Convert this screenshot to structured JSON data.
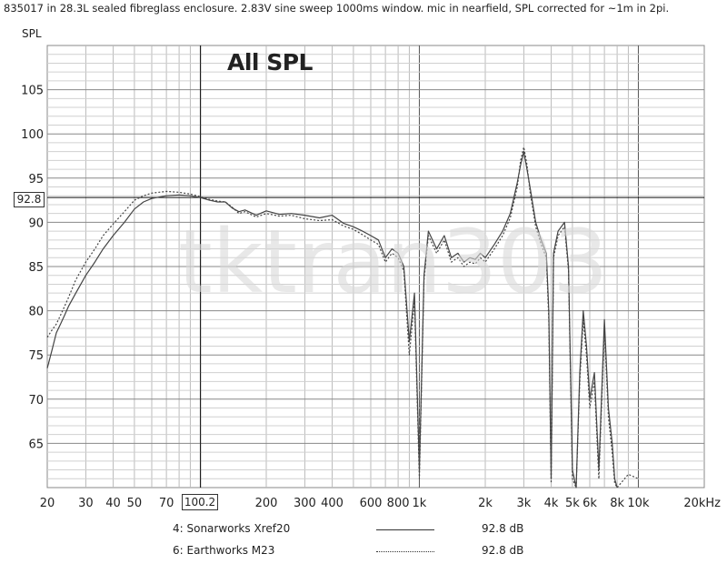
{
  "caption": "835017 in 28.3L sealed fibreglass enclosure. 2.83V sine sweep 1000ms window. mic in nearfield, SPL corrected for ~1m in 2pi.",
  "watermark": "tktran303",
  "chart_data": {
    "type": "line",
    "title": "All SPL",
    "ylabel": "SPL",
    "xlabel": "",
    "xscale": "log",
    "xlim": [
      20,
      20000
    ],
    "ylim": [
      60,
      110
    ],
    "grid": true,
    "x_ticks": [
      {
        "value": 20,
        "label": "20"
      },
      {
        "value": 30,
        "label": "30"
      },
      {
        "value": 40,
        "label": "40"
      },
      {
        "value": 50,
        "label": "50"
      },
      {
        "value": 70,
        "label": "70"
      },
      {
        "value": 200,
        "label": "200"
      },
      {
        "value": 300,
        "label": "300"
      },
      {
        "value": 400,
        "label": "400"
      },
      {
        "value": 600,
        "label": "600"
      },
      {
        "value": 800,
        "label": "800"
      },
      {
        "value": 1000,
        "label": "1k"
      },
      {
        "value": 2000,
        "label": "2k"
      },
      {
        "value": 3000,
        "label": "3k"
      },
      {
        "value": 4000,
        "label": "4k"
      },
      {
        "value": 5000,
        "label": "5k"
      },
      {
        "value": 6000,
        "label": "6k"
      },
      {
        "value": 8000,
        "label": "8k"
      },
      {
        "value": 10000,
        "label": "10k"
      },
      {
        "value": 20000,
        "label": "20kHz"
      }
    ],
    "y_ticks": [
      65,
      70,
      75,
      80,
      85,
      90,
      95,
      100,
      105
    ],
    "cursor": {
      "x": 100.2,
      "x_label": "100.2",
      "y": 92.8,
      "y_label": "92.8"
    },
    "series": [
      {
        "name": "4: Sonarworks Xref20",
        "value_label": "92.8 dB",
        "style": "solid",
        "color": "#444444",
        "x": [
          20,
          21,
          22,
          23,
          24,
          25,
          27,
          30,
          33,
          36,
          40,
          45,
          50,
          55,
          60,
          70,
          80,
          90,
          100,
          110,
          120,
          130,
          140,
          150,
          160,
          180,
          200,
          230,
          260,
          300,
          350,
          400,
          450,
          500,
          550,
          600,
          650,
          700,
          750,
          800,
          850,
          900,
          950,
          1000,
          1050,
          1100,
          1200,
          1300,
          1400,
          1500,
          1600,
          1700,
          1800,
          1900,
          2000,
          2200,
          2400,
          2600,
          2800,
          2900,
          3000,
          3100,
          3200,
          3400,
          3600,
          3800,
          3900,
          4000,
          4100,
          4300,
          4600,
          4800,
          5000,
          5200,
          5400,
          5600,
          5800,
          6000,
          6300,
          6600,
          7000,
          7300,
          7600,
          7800,
          8000
        ],
        "y": [
          73.5,
          75.5,
          77.5,
          78.5,
          79.5,
          80.5,
          82.0,
          84.0,
          85.5,
          87.0,
          88.5,
          90.0,
          91.5,
          92.3,
          92.7,
          93.0,
          93.1,
          93.0,
          92.8,
          92.5,
          92.3,
          92.3,
          91.6,
          91.2,
          91.4,
          90.8,
          91.3,
          90.9,
          91.0,
          90.8,
          90.5,
          90.8,
          89.9,
          89.5,
          89.0,
          88.5,
          88.0,
          86.0,
          87.0,
          86.5,
          85.0,
          76.5,
          82.0,
          62.0,
          84.0,
          89.0,
          87.0,
          88.5,
          86.0,
          86.5,
          85.5,
          86.0,
          85.8,
          86.5,
          86.0,
          87.5,
          89.0,
          91.0,
          94.5,
          96.5,
          98.0,
          96.0,
          94.0,
          90.0,
          88.0,
          86.5,
          80.0,
          61.0,
          86.5,
          89.0,
          90.0,
          85.0,
          62.0,
          60.0,
          73.0,
          80.0,
          76.0,
          70.0,
          73.0,
          62.0,
          79.0,
          69.0,
          65.0,
          61.0,
          60.0
        ]
      },
      {
        "name": "6: Earthworks M23",
        "value_label": "92.8 dB",
        "style": "dotted",
        "color": "#444444",
        "x": [
          20,
          21,
          22,
          23,
          24,
          25,
          27,
          30,
          33,
          36,
          40,
          45,
          50,
          55,
          60,
          70,
          80,
          90,
          100,
          110,
          120,
          130,
          140,
          150,
          160,
          180,
          200,
          230,
          260,
          300,
          350,
          400,
          450,
          500,
          550,
          600,
          650,
          700,
          750,
          800,
          850,
          900,
          950,
          1000,
          1050,
          1100,
          1200,
          1300,
          1400,
          1500,
          1600,
          1700,
          1800,
          1900,
          2000,
          2200,
          2400,
          2600,
          2800,
          2900,
          3000,
          3100,
          3200,
          3400,
          3600,
          3800,
          3900,
          4000,
          4100,
          4300,
          4600,
          4800,
          5000,
          5200,
          5400,
          5600,
          5800,
          6000,
          6300,
          6600,
          7000,
          7300,
          7600,
          7800,
          8000,
          9000,
          10000
        ],
        "y": [
          77.0,
          77.8,
          78.5,
          79.5,
          80.5,
          81.5,
          83.5,
          85.5,
          87.0,
          88.5,
          89.8,
          91.2,
          92.5,
          93.0,
          93.3,
          93.5,
          93.4,
          93.2,
          92.9,
          92.6,
          92.4,
          92.3,
          91.7,
          91.0,
          91.2,
          90.6,
          91.0,
          90.7,
          90.8,
          90.4,
          90.2,
          90.3,
          89.6,
          89.2,
          88.6,
          88.0,
          87.5,
          85.5,
          86.5,
          86.0,
          84.5,
          75.0,
          81.0,
          61.0,
          83.5,
          88.5,
          86.5,
          88.0,
          85.5,
          86.0,
          85.0,
          85.5,
          85.3,
          86.0,
          85.5,
          87.0,
          88.5,
          90.5,
          94.0,
          97.0,
          98.5,
          96.5,
          93.5,
          89.5,
          87.5,
          86.0,
          79.0,
          60.5,
          86.0,
          88.5,
          89.5,
          84.5,
          61.0,
          60.0,
          72.0,
          79.0,
          75.0,
          69.0,
          72.0,
          61.0,
          78.0,
          68.0,
          64.0,
          60.5,
          60.0,
          61.5,
          61.0
        ]
      }
    ]
  }
}
